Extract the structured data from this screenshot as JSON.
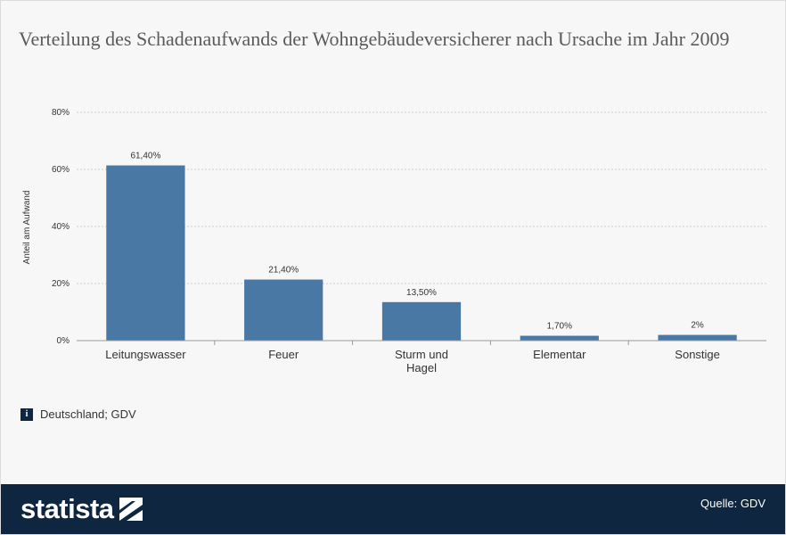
{
  "title": "Verteilung des Schadenaufwands der Wohngebäudeversicherer nach Ursache im Jahr 2009",
  "chart_data": {
    "type": "bar",
    "categories": [
      "Leitungswasser",
      "Feuer",
      "Sturm und Hagel",
      "Elementar",
      "Sonstige"
    ],
    "category_lines": [
      [
        "Leitungswasser"
      ],
      [
        "Feuer"
      ],
      [
        "Sturm und",
        "Hagel"
      ],
      [
        "Elementar"
      ],
      [
        "Sonstige"
      ]
    ],
    "values": [
      61.4,
      21.4,
      13.5,
      1.7,
      2
    ],
    "value_labels": [
      "61,40%",
      "21,40%",
      "13,50%",
      "1,70%",
      "2%"
    ],
    "ylabel": "Anteil am Aufwand",
    "ylim": [
      0,
      80
    ],
    "yticks": [
      0,
      20,
      40,
      60,
      80
    ],
    "ytick_labels": [
      "0%",
      "20%",
      "40%",
      "60%",
      "80%"
    ],
    "grid": true,
    "bar_color": "#4a78a4"
  },
  "source_note": "Deutschland; GDV",
  "info_icon": "info-icon",
  "footer": {
    "logo": "statista",
    "source": "Quelle: GDV"
  }
}
